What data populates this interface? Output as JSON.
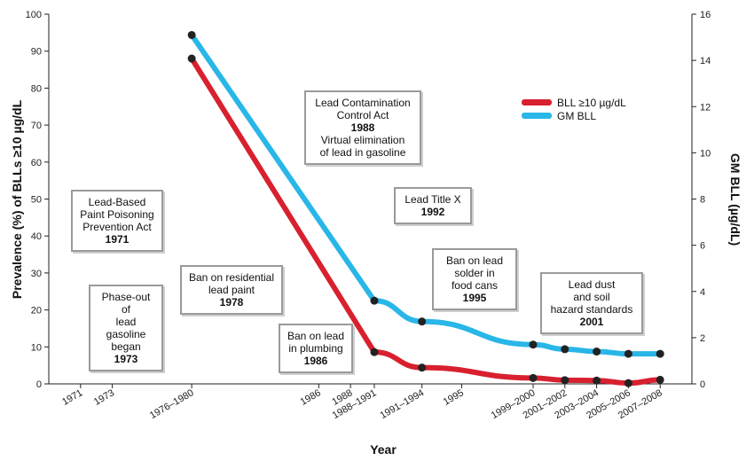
{
  "chart_data": {
    "type": "line",
    "xlabel": "Year",
    "ylabel_left": "Prevalence (%) of BLLs ≥10 µg/dL",
    "ylabel_right": "GM BLL (µg/dL)",
    "ylim_left": [
      0,
      100
    ],
    "ylim_right": [
      0,
      16
    ],
    "yticks_left": [
      0,
      10,
      20,
      30,
      40,
      50,
      60,
      70,
      80,
      90,
      100
    ],
    "yticks_right": [
      0,
      2,
      4,
      6,
      8,
      10,
      12,
      14,
      16
    ],
    "grid": false,
    "legend_position": "top-right",
    "x_tick_labels": [
      "1971",
      "1973",
      "1976–1980",
      "1986",
      "1988",
      "1988–1991",
      "1991–1994",
      "1995",
      "1999–2000",
      "2001–2002",
      "2003–2004",
      "2005–2006",
      "2007–2008"
    ],
    "x_tick_years": [
      1971,
      1973,
      1978,
      1986,
      1988,
      1989.5,
      1992.5,
      1995,
      1999.5,
      2001.5,
      2003.5,
      2005.5,
      2007.5
    ],
    "series": [
      {
        "name": "BLL ≥10 µg/dL",
        "axis": "left",
        "color": "#d8202f",
        "x": [
          1978,
          1989.5,
          1992.5,
          1999.5,
          2001.5,
          2003.5,
          2005.5,
          2007.5
        ],
        "values": [
          88,
          8.6,
          4.4,
          1.6,
          1.0,
          0.9,
          0.2,
          1.1
        ]
      },
      {
        "name": "GM BLL",
        "axis": "right",
        "color": "#29b6e8",
        "x": [
          1978,
          1989.5,
          1992.5,
          1999.5,
          2001.5,
          2003.5,
          2005.5,
          2007.5
        ],
        "values": [
          15.1,
          3.6,
          2.7,
          1.7,
          1.5,
          1.4,
          1.3,
          1.3
        ]
      }
    ],
    "annotations": [
      {
        "id": "a1971",
        "lines": [
          "Lead-Based",
          "Paint Poisoning",
          "Prevention Act"
        ],
        "year": "1971"
      },
      {
        "id": "a1973",
        "lines": [
          "Phase-out of",
          "lead gasoline",
          "began"
        ],
        "year": "1973"
      },
      {
        "id": "a1978",
        "lines": [
          "Ban on residential",
          "lead paint"
        ],
        "year": "1978"
      },
      {
        "id": "a1986",
        "lines": [
          "Ban on lead",
          "in plumbing"
        ],
        "year": "1986"
      },
      {
        "id": "a1988",
        "lines": [
          "Lead Contamination",
          "Control Act"
        ],
        "year": "1988",
        "after": [
          "Virtual elimination",
          "of lead in gasoline"
        ]
      },
      {
        "id": "a1992",
        "lines": [
          "Lead Title X"
        ],
        "year": "1992"
      },
      {
        "id": "a1995",
        "lines": [
          "Ban on lead",
          "solder in",
          "food cans"
        ],
        "year": "1995"
      },
      {
        "id": "a2001",
        "lines": [
          "Lead dust",
          "and soil",
          "hazard standards"
        ],
        "year": "2001"
      }
    ]
  }
}
